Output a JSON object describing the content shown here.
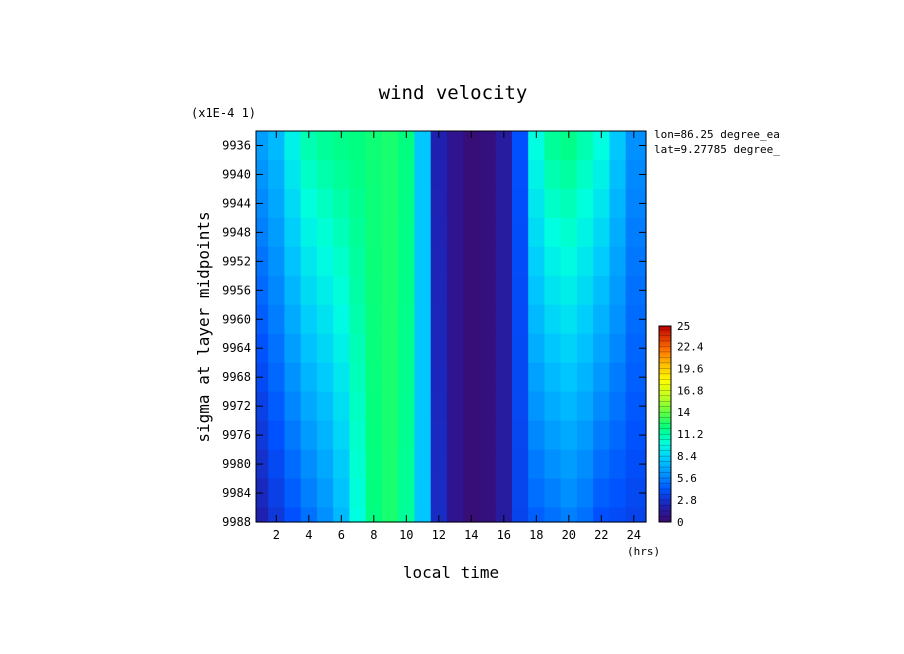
{
  "chart_data": {
    "type": "heatmap",
    "title": "wind velocity",
    "xlabel": "local time",
    "ylabel": "sigma at layer midpoints",
    "x_unit": "(hrs)",
    "y_scale_note": "(x1E-4 1)",
    "annotations": [
      "lon=86.25 degree_ea",
      "lat=9.27785 degree_"
    ],
    "xlim": [
      0.75,
      24.75
    ],
    "ylim": [
      9988,
      9934
    ],
    "x_ticks": [
      "2",
      "4",
      "6",
      "8",
      "10",
      "12",
      "14",
      "16",
      "18",
      "20",
      "22",
      "24"
    ],
    "y_ticks": [
      "9936",
      "9940",
      "9944",
      "9948",
      "9952",
      "9956",
      "9960",
      "9964",
      "9968",
      "9972",
      "9976",
      "9980",
      "9984",
      "9988"
    ],
    "colorbar": {
      "min": 0,
      "max": 25,
      "tick_labels": [
        "25",
        "22.4",
        "19.6",
        "16.8",
        "14",
        "11.2",
        "8.4",
        "5.6",
        "2.8",
        "0"
      ]
    },
    "x": [
      1,
      2,
      3,
      4,
      5,
      6,
      7,
      8,
      9,
      10,
      11,
      12,
      13,
      14,
      15,
      16,
      17,
      18,
      19,
      20,
      21,
      22,
      23,
      24
    ],
    "y_levels": [
      9936,
      9940,
      9944,
      9948,
      9952,
      9956,
      9960,
      9964,
      9968,
      9972,
      9976,
      9980,
      9984,
      9988
    ],
    "top_profile": [
      6.5,
      7.5,
      9.5,
      11,
      11.5,
      11.8,
      12,
      12.3,
      12.5,
      12,
      8,
      2,
      1,
      0.3,
      0.5,
      1.5,
      4,
      10,
      11.5,
      11.8,
      11,
      10,
      8,
      6
    ],
    "bottom_profile": [
      2,
      3,
      4,
      5,
      6,
      7.5,
      10,
      12,
      12.5,
      11.5,
      8,
      2.5,
      1,
      0.3,
      0.5,
      1.5,
      3.5,
      4.5,
      5,
      5.5,
      5,
      4,
      3.8,
      3.5
    ]
  }
}
